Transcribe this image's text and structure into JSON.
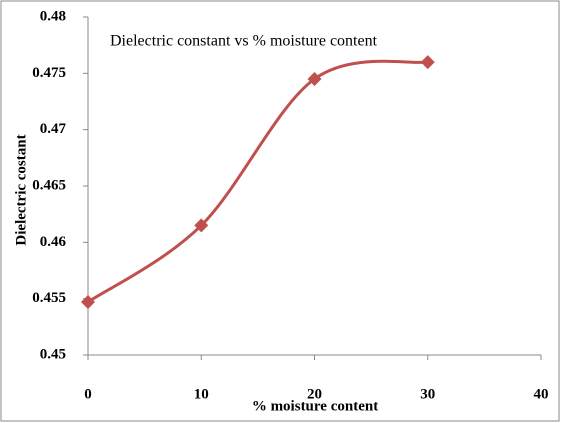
{
  "chart_data": {
    "type": "line",
    "title": "Dielectric constant vs % moisture content",
    "xlabel": "% moisture content",
    "ylabel": "Dielectric costant",
    "x": [
      0,
      10,
      20,
      30
    ],
    "series": [
      {
        "name": "Dielectric constant",
        "color": "#c0504d",
        "values": [
          0.4547,
          0.4615,
          0.4745,
          0.476
        ]
      }
    ],
    "xlim": [
      0,
      40
    ],
    "xticks": [
      0,
      10,
      20,
      30,
      40
    ],
    "ylim": [
      0.45,
      0.48
    ],
    "yticks": [
      0.45,
      0.455,
      0.46,
      0.465,
      0.47,
      0.475,
      0.48
    ],
    "grid": false,
    "smooth": true,
    "legend": false
  }
}
